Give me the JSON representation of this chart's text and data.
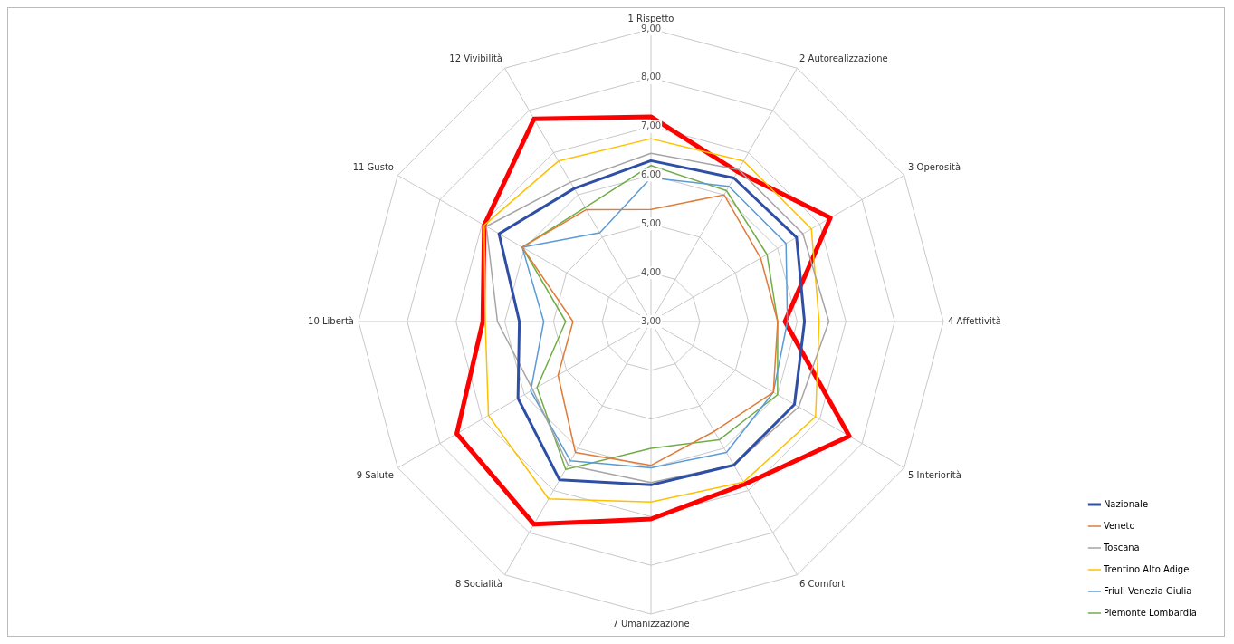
{
  "chart_data": {
    "type": "radar",
    "categories": [
      "1 Rispetto",
      "2 Autorealizzazione",
      "3 Operosità",
      "4 Affettività",
      "5 Interiorità",
      "6 Comfort",
      "7 Umanizzazione",
      "8 Socialità",
      "9 Salute",
      "10 Libertà",
      "11 Gusto",
      "12 Vivibilità"
    ],
    "ylim": [
      3,
      9
    ],
    "yticks": [
      {
        "value": 3,
        "label": "3,00"
      },
      {
        "value": 4,
        "label": "4,00"
      },
      {
        "value": 5,
        "label": "5,00"
      },
      {
        "value": 6,
        "label": "6,00"
      },
      {
        "value": 7,
        "label": "7,00"
      },
      {
        "value": 8,
        "label": "8,00"
      },
      {
        "value": 9,
        "label": "9,00"
      }
    ],
    "grid": true,
    "legend": "bottom right",
    "marker": "none",
    "series": [
      {
        "name": "Nazionale",
        "color": "#2e4fa3",
        "values": [
          6.3,
          6.4,
          6.45,
          6.15,
          6.4,
          6.4,
          6.35,
          6.75,
          6.15,
          5.7,
          6.6,
          6.15
        ]
      },
      {
        "name": "Veneto",
        "color": "#e07b39",
        "values": [
          5.3,
          6.0,
          5.6,
          5.6,
          5.9,
          5.6,
          5.95,
          6.1,
          5.2,
          4.6,
          6.05,
          5.65
        ]
      },
      {
        "name": "Toscana",
        "color": "#a5a5a5",
        "values": [
          6.45,
          6.6,
          6.6,
          6.65,
          6.5,
          6.4,
          6.3,
          6.4,
          5.8,
          6.15,
          6.9,
          6.3
        ]
      },
      {
        "name": "Trentino Alto Adige",
        "color": "#ffc000",
        "values": [
          6.75,
          6.8,
          6.8,
          6.45,
          6.9,
          6.8,
          6.7,
          7.2,
          6.85,
          6.4,
          6.95,
          6.8
        ]
      },
      {
        "name": "Friuli Venezia Giulia",
        "color": "#5b9bd5",
        "values": [
          5.95,
          6.2,
          6.2,
          5.8,
          5.9,
          6.1,
          6.0,
          6.3,
          5.85,
          5.2,
          6.05,
          5.1
        ]
      },
      {
        "name": "Piemonte Lombardia",
        "color": "#70ad47",
        "values": [
          6.2,
          6.1,
          5.75,
          5.6,
          6.0,
          5.8,
          5.6,
          6.5,
          5.7,
          4.75,
          6.05,
          5.7
        ]
      },
      {
        "color": "#ff0000",
        "values": [
          7.2,
          6.55,
          7.25,
          5.75,
          7.7,
          6.85,
          7.05,
          7.8,
          7.6,
          6.45,
          6.95,
          7.8
        ]
      }
    ]
  }
}
